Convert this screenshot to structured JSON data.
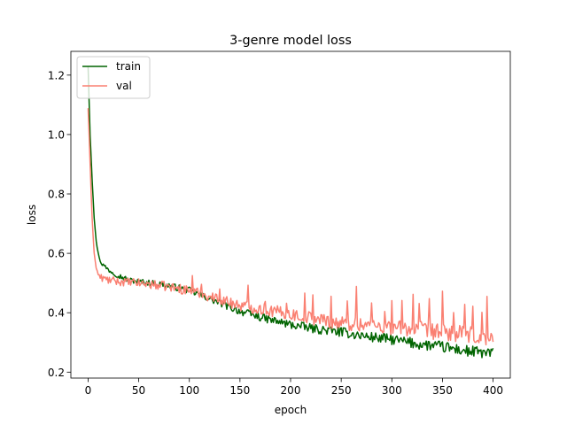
{
  "chart_data": {
    "type": "line",
    "title": "3-genre model loss",
    "xlabel": "epoch",
    "ylabel": "loss",
    "xlim": [
      -17,
      417
    ],
    "ylim": [
      0.18,
      1.28
    ],
    "xticks": [
      0,
      50,
      100,
      150,
      200,
      250,
      300,
      350,
      400
    ],
    "yticks": [
      0.2,
      0.4,
      0.6,
      0.8,
      1.0,
      1.2
    ],
    "ytick_labels": [
      "0.2",
      "0.4",
      "0.6",
      "0.8",
      "1.0",
      "1.2"
    ],
    "grid": false,
    "legend_position": "upper left",
    "series": [
      {
        "name": "train",
        "color": "#006400",
        "noise": 0.008,
        "points": [
          [
            0,
            1.23
          ],
          [
            2,
            1.0
          ],
          [
            4,
            0.85
          ],
          [
            6,
            0.72
          ],
          [
            8,
            0.64
          ],
          [
            10,
            0.6
          ],
          [
            12,
            0.575
          ],
          [
            15,
            0.56
          ],
          [
            20,
            0.545
          ],
          [
            30,
            0.525
          ],
          [
            40,
            0.51
          ],
          [
            50,
            0.505
          ],
          [
            75,
            0.495
          ],
          [
            100,
            0.475
          ],
          [
            125,
            0.44
          ],
          [
            150,
            0.405
          ],
          [
            175,
            0.38
          ],
          [
            200,
            0.36
          ],
          [
            225,
            0.345
          ],
          [
            250,
            0.335
          ],
          [
            275,
            0.32
          ],
          [
            300,
            0.31
          ],
          [
            325,
            0.295
          ],
          [
            350,
            0.285
          ],
          [
            375,
            0.27
          ],
          [
            400,
            0.262
          ]
        ]
      },
      {
        "name": "val",
        "color": "#fa8072",
        "noise": 0.012,
        "spikes": [
          [
            103,
            0.06
          ],
          [
            112,
            0.05
          ],
          [
            130,
            0.05
          ],
          [
            158,
            0.06
          ],
          [
            175,
            0.04
          ],
          [
            196,
            0.05
          ],
          [
            214,
            0.06
          ],
          [
            222,
            0.07
          ],
          [
            240,
            0.07
          ],
          [
            256,
            0.06
          ],
          [
            265,
            0.13
          ],
          [
            280,
            0.08
          ],
          [
            293,
            0.07
          ],
          [
            300,
            0.1
          ],
          [
            310,
            0.08
          ],
          [
            321,
            0.11
          ],
          [
            327,
            0.09
          ],
          [
            337,
            0.08
          ],
          [
            350,
            0.11
          ],
          [
            361,
            0.08
          ],
          [
            372,
            0.1
          ],
          [
            380,
            0.07
          ],
          [
            389,
            0.08
          ],
          [
            394,
            0.12
          ]
        ],
        "points": [
          [
            0,
            1.09
          ],
          [
            2,
            0.9
          ],
          [
            4,
            0.72
          ],
          [
            6,
            0.6
          ],
          [
            8,
            0.55
          ],
          [
            10,
            0.53
          ],
          [
            12,
            0.52
          ],
          [
            15,
            0.515
          ],
          [
            20,
            0.51
          ],
          [
            30,
            0.505
          ],
          [
            50,
            0.5
          ],
          [
            75,
            0.49
          ],
          [
            100,
            0.475
          ],
          [
            125,
            0.45
          ],
          [
            150,
            0.425
          ],
          [
            175,
            0.41
          ],
          [
            200,
            0.395
          ],
          [
            225,
            0.38
          ],
          [
            250,
            0.365
          ],
          [
            275,
            0.36
          ],
          [
            300,
            0.35
          ],
          [
            325,
            0.345
          ],
          [
            350,
            0.335
          ],
          [
            375,
            0.325
          ],
          [
            400,
            0.31
          ]
        ]
      }
    ]
  }
}
